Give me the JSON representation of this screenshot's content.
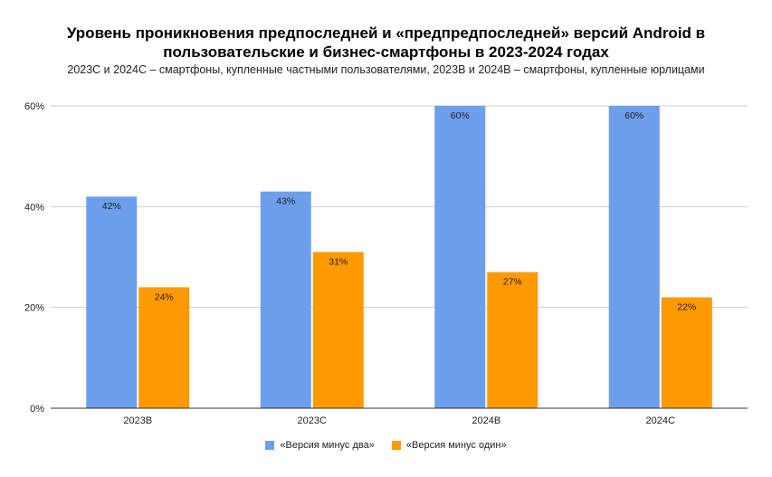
{
  "chart_data": {
    "type": "bar",
    "title_lines": [
      "Уровень проникновения предпоследней и «предпредпоследней» версий Android в",
      "пользовательские и бизнес-смартфоны в 2023-2024 годах"
    ],
    "subtitle": "2023С и 2024С – смартфоны, купленные частными пользователями, 2023В и 2024В – смартфоны, купленные юрлицами",
    "categories": [
      "2023В",
      "2023С",
      "2024В",
      "2024С"
    ],
    "series": [
      {
        "name": "«Версия минус два»",
        "color": "#6d9eeb",
        "values": [
          42,
          43,
          60,
          60
        ]
      },
      {
        "name": "«Версия минус один»",
        "color": "#ff9900",
        "values": [
          24,
          31,
          27,
          22
        ]
      }
    ],
    "value_suffix": "%",
    "ylim": [
      0,
      60
    ],
    "yticks": [
      "0%",
      "20%",
      "40%",
      "60%"
    ],
    "ytick_values": [
      0,
      20,
      40,
      60
    ],
    "grid": true,
    "legend_position": "bottom"
  }
}
